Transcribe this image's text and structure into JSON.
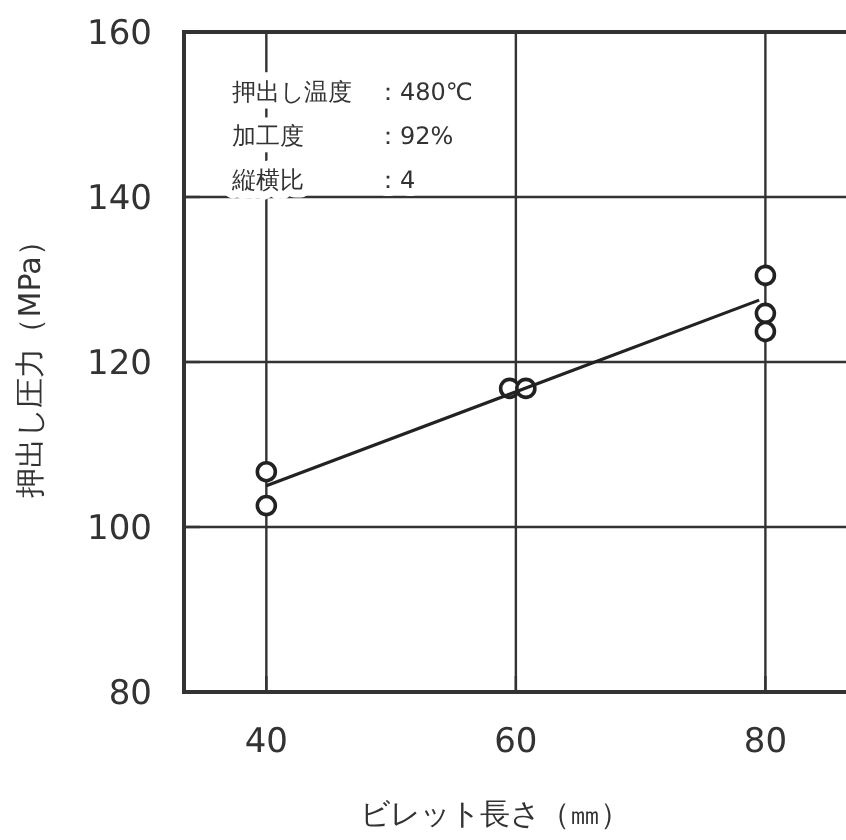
{
  "chart_data": {
    "type": "scatter",
    "xlabel": "ビレット長さ（㎜）",
    "ylabel": "押出し圧力（MPa）",
    "x": [
      40,
      40,
      59.5,
      60.8,
      80,
      80,
      80
    ],
    "series": [
      {
        "type": "scatter",
        "color": "#222222",
        "marker": "circle",
        "values": [
          106.7,
          102.6,
          116.8,
          116.8,
          130.5,
          125.9,
          123.7
        ]
      },
      {
        "type": "line",
        "color": "#222222",
        "marker": "none",
        "line_style": "solid",
        "x": [
          40,
          79.5
        ],
        "values": [
          105,
          127.5
        ]
      }
    ],
    "annotations": [
      "押出し温度　：480℃",
      "加工度　　　：92%",
      "縦横比　　　：4"
    ],
    "xlim": [
      33.4,
      86.3
    ],
    "ylim": [
      80,
      160
    ],
    "xticks": [
      40,
      60,
      80
    ],
    "yticks": [
      80,
      100,
      120,
      140,
      160
    ],
    "grid": true
  }
}
